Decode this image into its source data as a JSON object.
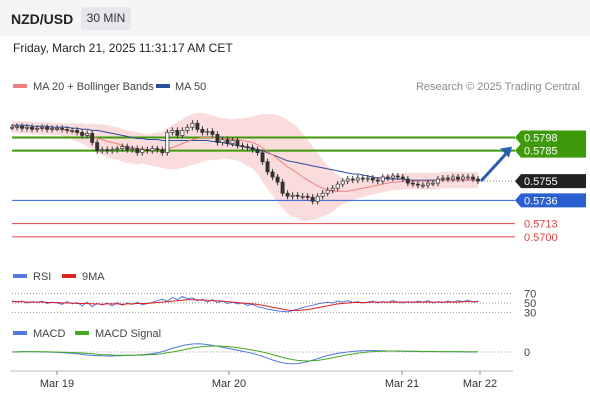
{
  "header": {
    "symbol": "NZD/USD",
    "interval": "30 MIN",
    "datetime": "Friday, March 21, 2025 11:31:17 AM CET"
  },
  "copyright": "Research © 2025 Trading Central",
  "colors": {
    "bollinger": "#f08080",
    "bollinger_fill": "#fbdcdc",
    "ma50": "#2a4f9c",
    "resistance": "#3e9a0a",
    "support": "#2a5fd0",
    "minor_level": "#e04040",
    "current_price_bg": "#222222",
    "candle": "#333333",
    "rsi": "#5577dd",
    "rsi_ma": "#dd2222",
    "macd": "#5577dd",
    "macd_signal": "#44aa22",
    "arrow": "#2a5fb0"
  },
  "chart_data": [
    {
      "type": "candlestick",
      "name": "price",
      "legend": [
        "MA 20 + Bollinger Bands",
        "MA 50"
      ],
      "ylim": [
        0.569,
        0.583
      ],
      "x_ticks": [
        "Mar 19",
        "Mar 20",
        "Mar 21",
        "Mar 22"
      ],
      "close": [
        0.5808,
        0.5809,
        0.5807,
        0.5808,
        0.5806,
        0.5807,
        0.5808,
        0.5806,
        0.5807,
        0.5807,
        0.5806,
        0.5805,
        0.5805,
        0.5803,
        0.58,
        0.5802,
        0.5793,
        0.5785,
        0.5786,
        0.5785,
        0.5786,
        0.5787,
        0.5789,
        0.5786,
        0.5787,
        0.5783,
        0.5786,
        0.5785,
        0.5787,
        0.5786,
        0.5783,
        0.5803,
        0.5805,
        0.58,
        0.5805,
        0.5808,
        0.5812,
        0.5806,
        0.5803,
        0.5804,
        0.5801,
        0.5793,
        0.5796,
        0.5792,
        0.5795,
        0.579,
        0.5789,
        0.5788,
        0.5786,
        0.5783,
        0.5774,
        0.5764,
        0.5759,
        0.5754,
        0.5743,
        0.574,
        0.5741,
        0.574,
        0.574,
        0.5739,
        0.5735,
        0.574,
        0.5743,
        0.5746,
        0.5748,
        0.5752,
        0.5755,
        0.5757,
        0.5756,
        0.5758,
        0.5757,
        0.5758,
        0.5756,
        0.5755,
        0.5759,
        0.5758,
        0.576,
        0.5759,
        0.5757,
        0.5753,
        0.5752,
        0.5751,
        0.5751,
        0.5753,
        0.5753,
        0.5757,
        0.5758,
        0.5757,
        0.5759,
        0.5757,
        0.5759,
        0.5759,
        0.5757,
        0.5755
      ],
      "ma20": [
        0.5809,
        0.5808,
        0.5808,
        0.5808,
        0.5807,
        0.5807,
        0.5807,
        0.5807,
        0.5806,
        0.5806,
        0.5806,
        0.5805,
        0.5804,
        0.5803,
        0.5802,
        0.58,
        0.5799,
        0.5797,
        0.5796,
        0.5794,
        0.5793,
        0.5792,
        0.579,
        0.5789,
        0.5788,
        0.5787,
        0.5787,
        0.5786,
        0.5786,
        0.5786,
        0.5786,
        0.5787,
        0.5788,
        0.579,
        0.5792,
        0.5794,
        0.5796,
        0.5797,
        0.5798,
        0.5798,
        0.5798,
        0.5797,
        0.5797,
        0.5797,
        0.5796,
        0.5796,
        0.5795,
        0.5794,
        0.5793,
        0.5791,
        0.5788,
        0.5784,
        0.5781,
        0.5777,
        0.5773,
        0.5769,
        0.5766,
        0.5763,
        0.5759,
        0.5756,
        0.5753,
        0.575,
        0.5748,
        0.5746,
        0.5745,
        0.5745,
        0.5745,
        0.5745,
        0.5746,
        0.5747,
        0.5748,
        0.5749,
        0.575,
        0.5751,
        0.5752,
        0.5753,
        0.5754,
        0.5754,
        0.5755,
        0.5755,
        0.5755,
        0.5755,
        0.5755,
        0.5755,
        0.5755,
        0.5755,
        0.5756,
        0.5756,
        0.5756,
        0.5756,
        0.5756,
        0.5756,
        0.5756,
        0.5756
      ],
      "ma50": [
        0.581,
        0.581,
        0.581,
        0.581,
        0.5809,
        0.5809,
        0.5809,
        0.5809,
        0.5808,
        0.5808,
        0.5808,
        0.5808,
        0.5807,
        0.5807,
        0.5806,
        0.5806,
        0.5805,
        0.5805,
        0.5804,
        0.5803,
        0.5802,
        0.5801,
        0.58,
        0.5799,
        0.5798,
        0.5797,
        0.5797,
        0.5796,
        0.5796,
        0.5796,
        0.5795,
        0.5795,
        0.5795,
        0.5795,
        0.5795,
        0.5795,
        0.5795,
        0.5795,
        0.5795,
        0.5795,
        0.5794,
        0.5794,
        0.5793,
        0.5792,
        0.5791,
        0.579,
        0.5789,
        0.5788,
        0.5787,
        0.5786,
        0.5785,
        0.5783,
        0.5781,
        0.5779,
        0.5777,
        0.5775,
        0.5774,
        0.5773,
        0.5772,
        0.5771,
        0.577,
        0.5769,
        0.5768,
        0.5767,
        0.5766,
        0.5765,
        0.5764,
        0.5763,
        0.5762,
        0.5762,
        0.5761,
        0.576,
        0.5759,
        0.5758,
        0.5758,
        0.5757,
        0.5757,
        0.5757,
        0.5757,
        0.5756,
        0.5756,
        0.5756,
        0.5756,
        0.5756,
        0.5756,
        0.5756,
        0.5756,
        0.5756,
        0.5756,
        0.5756,
        0.5756,
        0.5756,
        0.5756,
        0.5756
      ],
      "band_width": [
        0.0006,
        0.0006,
        0.0006,
        0.0006,
        0.0006,
        0.0006,
        0.0006,
        0.0006,
        0.0006,
        0.0006,
        0.0006,
        0.0007,
        0.0008,
        0.0009,
        0.001,
        0.0011,
        0.0013,
        0.0014,
        0.0015,
        0.0016,
        0.0016,
        0.0016,
        0.0016,
        0.0016,
        0.0016,
        0.0016,
        0.0015,
        0.0015,
        0.0016,
        0.0017,
        0.0018,
        0.002,
        0.0022,
        0.0023,
        0.0024,
        0.0025,
        0.0025,
        0.0025,
        0.0024,
        0.0023,
        0.0022,
        0.0021,
        0.002,
        0.002,
        0.002,
        0.0021,
        0.0022,
        0.0024,
        0.0026,
        0.0029,
        0.0033,
        0.0037,
        0.004,
        0.0043,
        0.0045,
        0.0046,
        0.0046,
        0.0045,
        0.0043,
        0.004,
        0.0036,
        0.0032,
        0.0028,
        0.0024,
        0.002,
        0.0016,
        0.0013,
        0.0011,
        0.001,
        0.0009,
        0.0009,
        0.0008,
        0.0008,
        0.0008,
        0.0008,
        0.0008,
        0.0008,
        0.0008,
        0.0008,
        0.0008,
        0.0008,
        0.0008,
        0.0008,
        0.0008,
        0.0008,
        0.0008,
        0.0008,
        0.0008,
        0.0008,
        0.0008,
        0.0008,
        0.0008,
        0.0008,
        0.0008
      ],
      "levels": [
        {
          "value": "0.5798",
          "kind": "resistance"
        },
        {
          "value": "0.5785",
          "kind": "resistance"
        },
        {
          "value": "0.5755",
          "kind": "current"
        },
        {
          "value": "0.5736",
          "kind": "support"
        },
        {
          "value": "0.5713",
          "kind": "minor"
        },
        {
          "value": "0.5700",
          "kind": "minor"
        }
      ],
      "projection_target": 0.5785
    },
    {
      "type": "line",
      "name": "rsi",
      "legend": [
        "RSI",
        "9MA"
      ],
      "ylim": [
        20,
        80
      ],
      "ticks": [
        "70",
        "50",
        "30"
      ],
      "series": [
        {
          "name": "RSI",
          "values": [
            55,
            52,
            54,
            50,
            53,
            51,
            54,
            49,
            52,
            50,
            47,
            53,
            48,
            51,
            44,
            52,
            42,
            49,
            46,
            50,
            44,
            51,
            45,
            50,
            47,
            52,
            46,
            49,
            51,
            55,
            58,
            54,
            62,
            57,
            64,
            59,
            61,
            55,
            58,
            52,
            57,
            51,
            54,
            49,
            52,
            48,
            50,
            45,
            47,
            42,
            40,
            37,
            35,
            33,
            32,
            31,
            34,
            37,
            40,
            43,
            45,
            48,
            50,
            52,
            50,
            54,
            52,
            55,
            51,
            53,
            50,
            52,
            54,
            50,
            53,
            51,
            55,
            52,
            50,
            53,
            51,
            54,
            52,
            55,
            50,
            53,
            51,
            54,
            52,
            55,
            53,
            56,
            52,
            54
          ]
        },
        {
          "name": "9MA",
          "values": [
            53,
            53,
            53,
            52,
            52,
            52,
            52,
            51,
            51,
            51,
            50,
            50,
            50,
            49,
            49,
            49,
            48,
            48,
            47,
            48,
            48,
            48,
            47,
            48,
            48,
            49,
            49,
            49,
            50,
            51,
            52,
            53,
            54,
            55,
            56,
            57,
            57,
            57,
            56,
            56,
            55,
            55,
            54,
            53,
            52,
            51,
            50,
            49,
            48,
            47,
            45,
            43,
            41,
            39,
            37,
            35,
            34,
            34,
            35,
            36,
            38,
            40,
            42,
            44,
            46,
            48,
            49,
            50,
            51,
            51,
            51,
            51,
            52,
            52,
            52,
            52,
            52,
            52,
            52,
            52,
            52,
            52,
            52,
            52,
            52,
            52,
            52,
            52,
            52,
            52,
            53,
            53,
            53,
            53
          ]
        }
      ]
    },
    {
      "type": "line",
      "name": "macd",
      "legend": [
        "MACD",
        "MACD Signal"
      ],
      "ylim": [
        -10,
        6
      ],
      "ticks": [
        "0"
      ],
      "series": [
        {
          "name": "MACD",
          "values": [
            0.0,
            0.1,
            0.2,
            0.2,
            0.2,
            0.1,
            0.0,
            0.0,
            -0.1,
            -0.2,
            -0.3,
            -0.5,
            -0.7,
            -0.9,
            -1.2,
            -1.5,
            -1.7,
            -1.8,
            -1.9,
            -2.0,
            -2.0,
            -1.9,
            -1.8,
            -1.7,
            -1.6,
            -1.5,
            -1.3,
            -1.1,
            -0.8,
            -0.4,
            0.2,
            1.0,
            1.8,
            2.5,
            3.2,
            3.7,
            4.0,
            4.1,
            4.0,
            3.7,
            3.3,
            2.9,
            2.4,
            1.9,
            1.4,
            0.9,
            0.4,
            -0.1,
            -0.7,
            -1.4,
            -2.2,
            -3.1,
            -4.0,
            -4.8,
            -5.4,
            -5.8,
            -5.9,
            -5.8,
            -5.4,
            -4.8,
            -4.1,
            -3.3,
            -2.5,
            -1.8,
            -1.2,
            -0.7,
            -0.3,
            0.0,
            0.3,
            0.5,
            0.6,
            0.7,
            0.7,
            0.6,
            0.6,
            0.5,
            0.5,
            0.4,
            0.4,
            0.3,
            0.3,
            0.3,
            0.2,
            0.2,
            0.2,
            0.2,
            0.1,
            0.1,
            0.1,
            0.1,
            0.1,
            0.0,
            0.0,
            0.0
          ]
        },
        {
          "name": "MACD Signal",
          "values": [
            0.0,
            0.0,
            0.1,
            0.1,
            0.1,
            0.1,
            0.1,
            0.1,
            0.0,
            0.0,
            -0.1,
            -0.2,
            -0.3,
            -0.4,
            -0.5,
            -0.7,
            -0.9,
            -1.1,
            -1.3,
            -1.4,
            -1.5,
            -1.6,
            -1.6,
            -1.6,
            -1.6,
            -1.6,
            -1.5,
            -1.4,
            -1.3,
            -1.1,
            -0.8,
            -0.4,
            0.0,
            0.5,
            1.0,
            1.5,
            2.0,
            2.4,
            2.7,
            2.9,
            3.0,
            3.0,
            2.9,
            2.7,
            2.5,
            2.2,
            1.8,
            1.4,
            1.0,
            0.5,
            0.0,
            -0.6,
            -1.3,
            -2.0,
            -2.7,
            -3.3,
            -3.8,
            -4.2,
            -4.4,
            -4.5,
            -4.4,
            -4.2,
            -3.8,
            -3.4,
            -2.9,
            -2.4,
            -1.9,
            -1.4,
            -1.0,
            -0.6,
            -0.3,
            0.0,
            0.2,
            0.3,
            0.4,
            0.5,
            0.5,
            0.5,
            0.5,
            0.4,
            0.4,
            0.4,
            0.3,
            0.3,
            0.3,
            0.2,
            0.2,
            0.2,
            0.2,
            0.1,
            0.1,
            0.1,
            0.1,
            0.1
          ]
        }
      ]
    }
  ]
}
